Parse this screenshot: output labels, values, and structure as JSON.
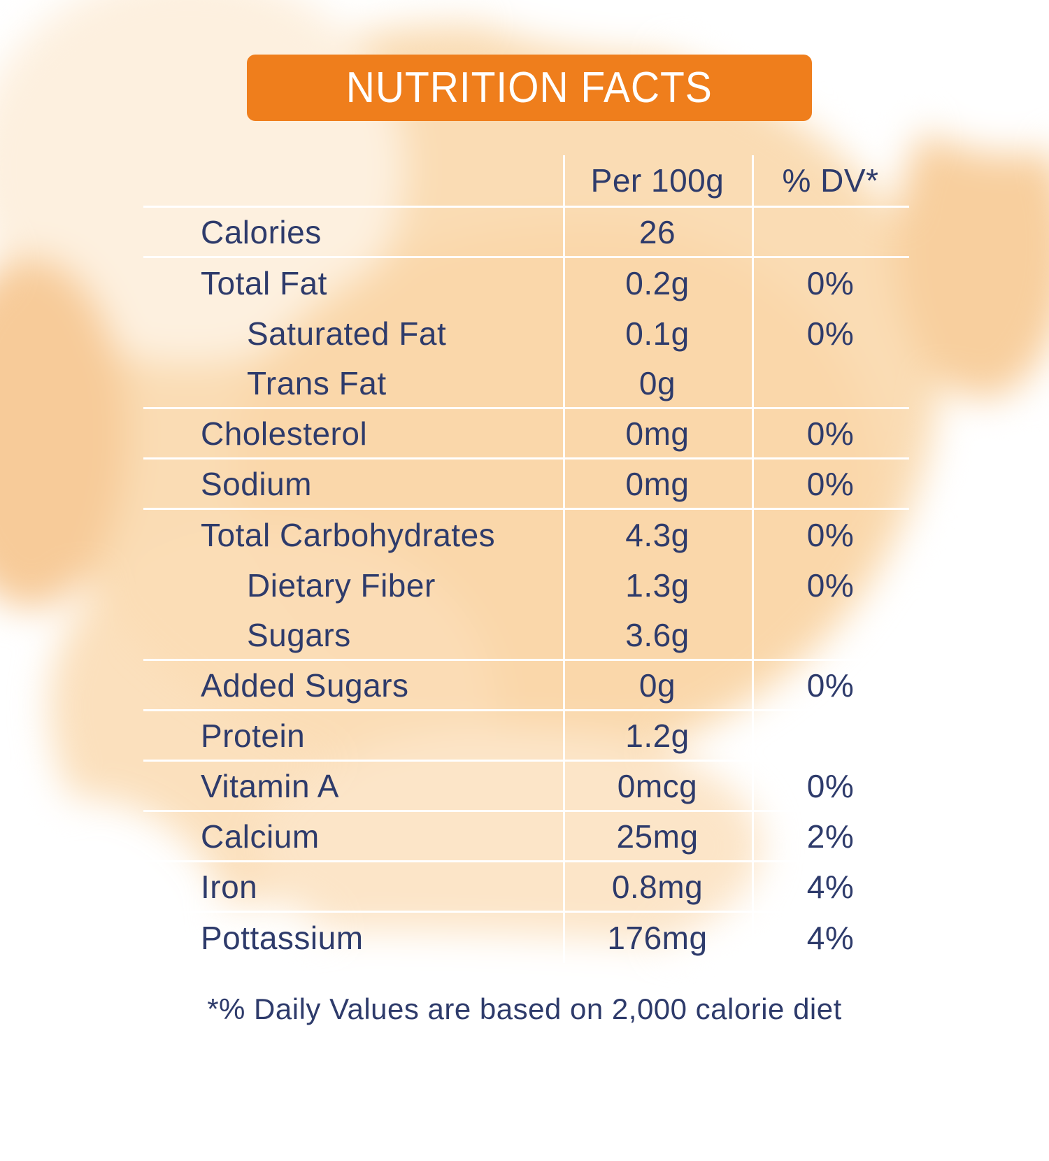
{
  "title": "NUTRITION FACTS",
  "table": {
    "columns": {
      "amount": "Per 100g",
      "dv": "% DV*"
    },
    "rows": [
      {
        "label": "Calories",
        "amount": "26",
        "dv": "",
        "indent": false,
        "line_below": true
      },
      {
        "label": "Total Fat",
        "amount": "0.2g",
        "dv": "0%",
        "indent": false,
        "line_below": false
      },
      {
        "label": "Saturated Fat",
        "amount": "0.1g",
        "dv": "0%",
        "indent": true,
        "line_below": false
      },
      {
        "label": "Trans Fat",
        "amount": "0g",
        "dv": "",
        "indent": true,
        "line_below": true
      },
      {
        "label": "Cholesterol",
        "amount": "0mg",
        "dv": "0%",
        "indent": false,
        "line_below": true
      },
      {
        "label": "Sodium",
        "amount": "0mg",
        "dv": "0%",
        "indent": false,
        "line_below": true
      },
      {
        "label": "Total Carbohydrates",
        "amount": "4.3g",
        "dv": "0%",
        "indent": false,
        "line_below": false
      },
      {
        "label": "Dietary Fiber",
        "amount": "1.3g",
        "dv": "0%",
        "indent": true,
        "line_below": false
      },
      {
        "label": "Sugars",
        "amount": "3.6g",
        "dv": "",
        "indent": true,
        "line_below": true
      },
      {
        "label": "Added Sugars",
        "amount": "0g",
        "dv": "0%",
        "indent": false,
        "line_below": true
      },
      {
        "label": "Protein",
        "amount": "1.2g",
        "dv": "",
        "indent": false,
        "line_below": true
      },
      {
        "label": "Vitamin A",
        "amount": "0mcg",
        "dv": "0%",
        "indent": false,
        "line_below": true
      },
      {
        "label": "Calcium",
        "amount": "25mg",
        "dv": "2%",
        "indent": false,
        "line_below": true
      },
      {
        "label": "Iron",
        "amount": "0.8mg",
        "dv": "4%",
        "indent": false,
        "line_below": true
      },
      {
        "label": "Pottassium",
        "amount": "176mg",
        "dv": "4%",
        "indent": false,
        "line_below": false
      }
    ]
  },
  "footnote": "*% Daily Values are based on 2,000 calorie diet",
  "colors": {
    "accent_orange": "#ef7e1c",
    "text_navy": "#2e3b6b",
    "divider_white": "#ffffff",
    "background_peach": "#fadcb4"
  }
}
